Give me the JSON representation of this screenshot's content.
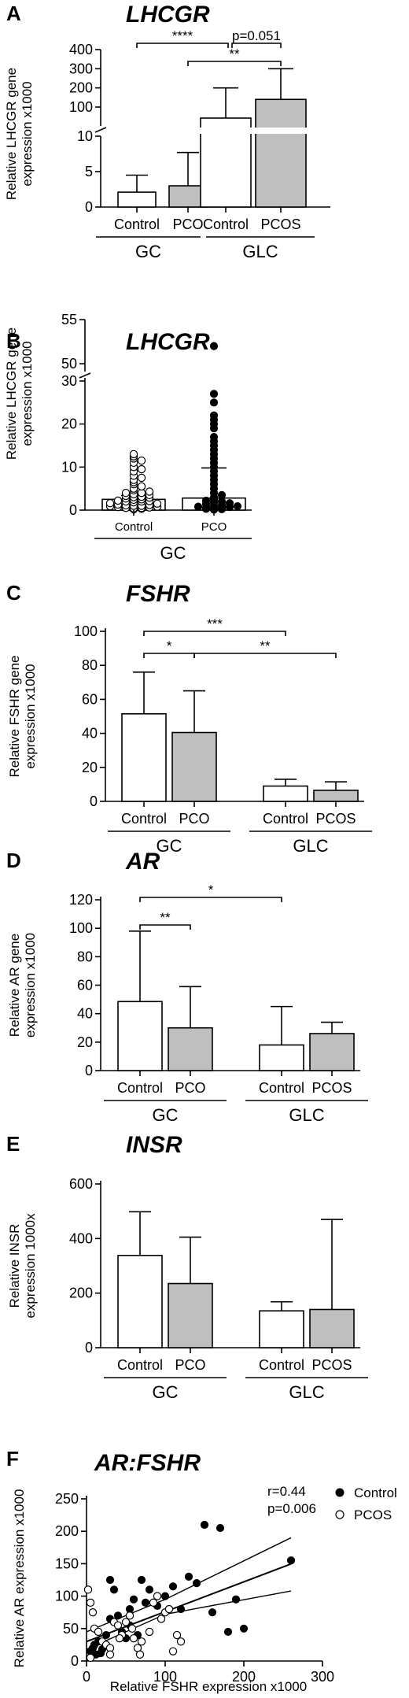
{
  "chart_data": [
    {
      "panel": "A",
      "type": "bar",
      "title": "LHCGR",
      "ylabel_lines": [
        "Relative LHCGR gene",
        "expression x1000"
      ],
      "broken_axis": true,
      "lower_ticks": [
        0,
        5,
        10
      ],
      "upper_ticks": [
        100,
        200,
        300,
        400
      ],
      "groups": [
        {
          "label": "GC",
          "categories": [
            "Control",
            "PCO"
          ]
        },
        {
          "label": "GLC",
          "categories": [
            "Control",
            "PCOS"
          ]
        }
      ],
      "values": [
        2.1,
        3.0,
        60,
        140
      ],
      "errors": [
        4.5,
        7.7,
        200,
        300
      ],
      "bar_fills": [
        "white",
        "grey",
        "white",
        "grey"
      ],
      "significance": [
        {
          "from": 0,
          "to": 2,
          "label": "****"
        },
        {
          "from": 2,
          "to": 3,
          "label": "p=0.051"
        },
        {
          "from": 1,
          "to": 3,
          "label": "**"
        }
      ]
    },
    {
      "panel": "B",
      "type": "scatter",
      "title": "LHCGR",
      "ylabel_lines": [
        "Relative LHCGR gene",
        "expression x1000"
      ],
      "broken_axis": true,
      "lower_ticks": [
        0,
        10,
        20,
        30
      ],
      "upper_ticks": [
        50,
        55
      ],
      "group_label": "GC",
      "categories": [
        "Control",
        "PCO"
      ],
      "bar_values": [
        2.5,
        2.8
      ],
      "bar_errors": [
        0.9,
        7.0
      ],
      "points": {
        "Control": [
          0.2,
          0.3,
          0.4,
          0.5,
          0.5,
          0.6,
          0.7,
          0.8,
          0.9,
          1.0,
          1.0,
          1.1,
          1.2,
          1.3,
          1.5,
          1.6,
          1.8,
          2.0,
          2.0,
          2.1,
          2.2,
          2.4,
          2.5,
          2.7,
          2.9,
          3.0,
          3.1,
          3.3,
          3.5,
          3.7,
          4.0,
          4.0,
          4.3,
          4.6,
          5.0,
          5.5,
          6.0,
          6.5,
          7.0,
          7.5,
          8.0,
          9.0,
          9.5,
          10.0,
          11.0,
          11.5,
          12.0,
          12.5,
          13.0
        ],
        "PCO": [
          0.1,
          0.2,
          0.3,
          0.4,
          0.5,
          0.6,
          0.7,
          0.8,
          0.9,
          1.0,
          1.2,
          1.4,
          1.6,
          1.8,
          2.0,
          2.2,
          2.5,
          3.0,
          3.5,
          4.0,
          5.0,
          6.0,
          7.0,
          8.0,
          9.0,
          10.0,
          11.0,
          12.0,
          13.0,
          14.0,
          15.0,
          16.0,
          17.0,
          19.0,
          20.0,
          21.0,
          22.0,
          25.0,
          27.0,
          52.0
        ]
      }
    },
    {
      "panel": "C",
      "type": "bar",
      "title": "FSHR",
      "ylabel_lines": [
        "Relative FSHR gene",
        "expression x1000"
      ],
      "ylim": [
        0,
        100
      ],
      "ticks": [
        0,
        20,
        40,
        60,
        80,
        100
      ],
      "groups": [
        {
          "label": "GC",
          "categories": [
            "Control",
            "PCO"
          ]
        },
        {
          "label": "GLC",
          "categories": [
            "Control",
            "PCOS"
          ]
        }
      ],
      "values": [
        51.5,
        40.5,
        9.0,
        6.5
      ],
      "errors": [
        76,
        65,
        13,
        11.5
      ],
      "bar_fills": [
        "white",
        "grey",
        "white",
        "grey"
      ],
      "significance": [
        {
          "from": 0,
          "to": 1,
          "label": "*"
        },
        {
          "from": 0,
          "to": 2,
          "label": "***"
        },
        {
          "from": 1,
          "to": 3,
          "label": "**"
        }
      ]
    },
    {
      "panel": "D",
      "type": "bar",
      "title": "AR",
      "ylabel_lines": [
        "Relative AR gene",
        "expression x1000"
      ],
      "ylim": [
        0,
        120
      ],
      "ticks": [
        0,
        20,
        40,
        60,
        80,
        100,
        120
      ],
      "groups": [
        {
          "label": "GC",
          "categories": [
            "Control",
            "PCO"
          ]
        },
        {
          "label": "GLC",
          "categories": [
            "Control",
            "PCOS"
          ]
        }
      ],
      "values": [
        48.5,
        30.0,
        18.0,
        26.0
      ],
      "errors": [
        98,
        59,
        45,
        34
      ],
      "bar_fills": [
        "white",
        "grey",
        "white",
        "grey"
      ],
      "significance": [
        {
          "from": 0,
          "to": 1,
          "label": "**"
        },
        {
          "from": 0,
          "to": 2,
          "label": "*"
        }
      ]
    },
    {
      "panel": "E",
      "type": "bar",
      "title": "INSR",
      "ylabel_lines": [
        "Relative INSR",
        "expression 1000x"
      ],
      "ylim": [
        0,
        600
      ],
      "ticks": [
        0,
        200,
        400,
        600
      ],
      "groups": [
        {
          "label": "GC",
          "categories": [
            "Control",
            "PCO"
          ]
        },
        {
          "label": "GLC",
          "categories": [
            "Control",
            "PCOS"
          ]
        }
      ],
      "values": [
        338,
        235,
        135,
        140
      ],
      "errors": [
        498,
        405,
        168,
        470
      ],
      "bar_fills": [
        "white",
        "grey",
        "white",
        "grey"
      ],
      "significance": []
    },
    {
      "panel": "F",
      "type": "scatter",
      "title": "AR:FSHR",
      "xlabel": "Relative FSHR expression x1000",
      "ylabel": "Relative AR expression x1000",
      "xlim": [
        0,
        300
      ],
      "ylim": [
        0,
        250
      ],
      "xticks": [
        0,
        100,
        200,
        300
      ],
      "yticks": [
        0,
        50,
        100,
        150,
        200,
        250
      ],
      "stats": [
        "r=0.44",
        "p=0.006"
      ],
      "legend": [
        {
          "name": "Control",
          "marker": "filled circle"
        },
        {
          "name": "PCOS",
          "marker": "open circle"
        }
      ],
      "series": [
        {
          "name": "Control",
          "x": [
            5,
            8,
            10,
            12,
            15,
            18,
            20,
            25,
            30,
            35,
            40,
            45,
            50,
            55,
            60,
            65,
            70,
            80,
            90,
            100,
            110,
            120,
            130,
            140,
            150,
            160,
            170,
            180,
            190,
            200,
            260,
            30,
            55,
            75
          ],
          "y": [
            15,
            20,
            25,
            10,
            30,
            12,
            18,
            40,
            125,
            110,
            70,
            45,
            35,
            80,
            95,
            40,
            125,
            110,
            85,
            100,
            115,
            80,
            130,
            120,
            210,
            75,
            205,
            45,
            95,
            50,
            155,
            65,
            55,
            90
          ]
        },
        {
          "name": "PCOS",
          "x": [
            2,
            5,
            8,
            10,
            15,
            20,
            25,
            30,
            35,
            40,
            45,
            50,
            55,
            60,
            65,
            70,
            80,
            85,
            90,
            95,
            100,
            105,
            110,
            115,
            120,
            5,
            30,
            42,
            58,
            68
          ],
          "y": [
            110,
            90,
            75,
            50,
            45,
            30,
            25,
            20,
            60,
            55,
            40,
            60,
            70,
            35,
            20,
            30,
            45,
            90,
            100,
            65,
            75,
            80,
            15,
            40,
            30,
            5,
            10,
            35,
            50,
            10
          ]
        }
      ],
      "fit": {
        "intercept": 30,
        "slope": 0.46
      },
      "ci_upper": [
        [
          0,
          45
        ],
        [
          100,
          95
        ],
        [
          260,
          190
        ]
      ],
      "ci_lower": [
        [
          0,
          18
        ],
        [
          100,
          72
        ],
        [
          260,
          108
        ]
      ]
    }
  ]
}
